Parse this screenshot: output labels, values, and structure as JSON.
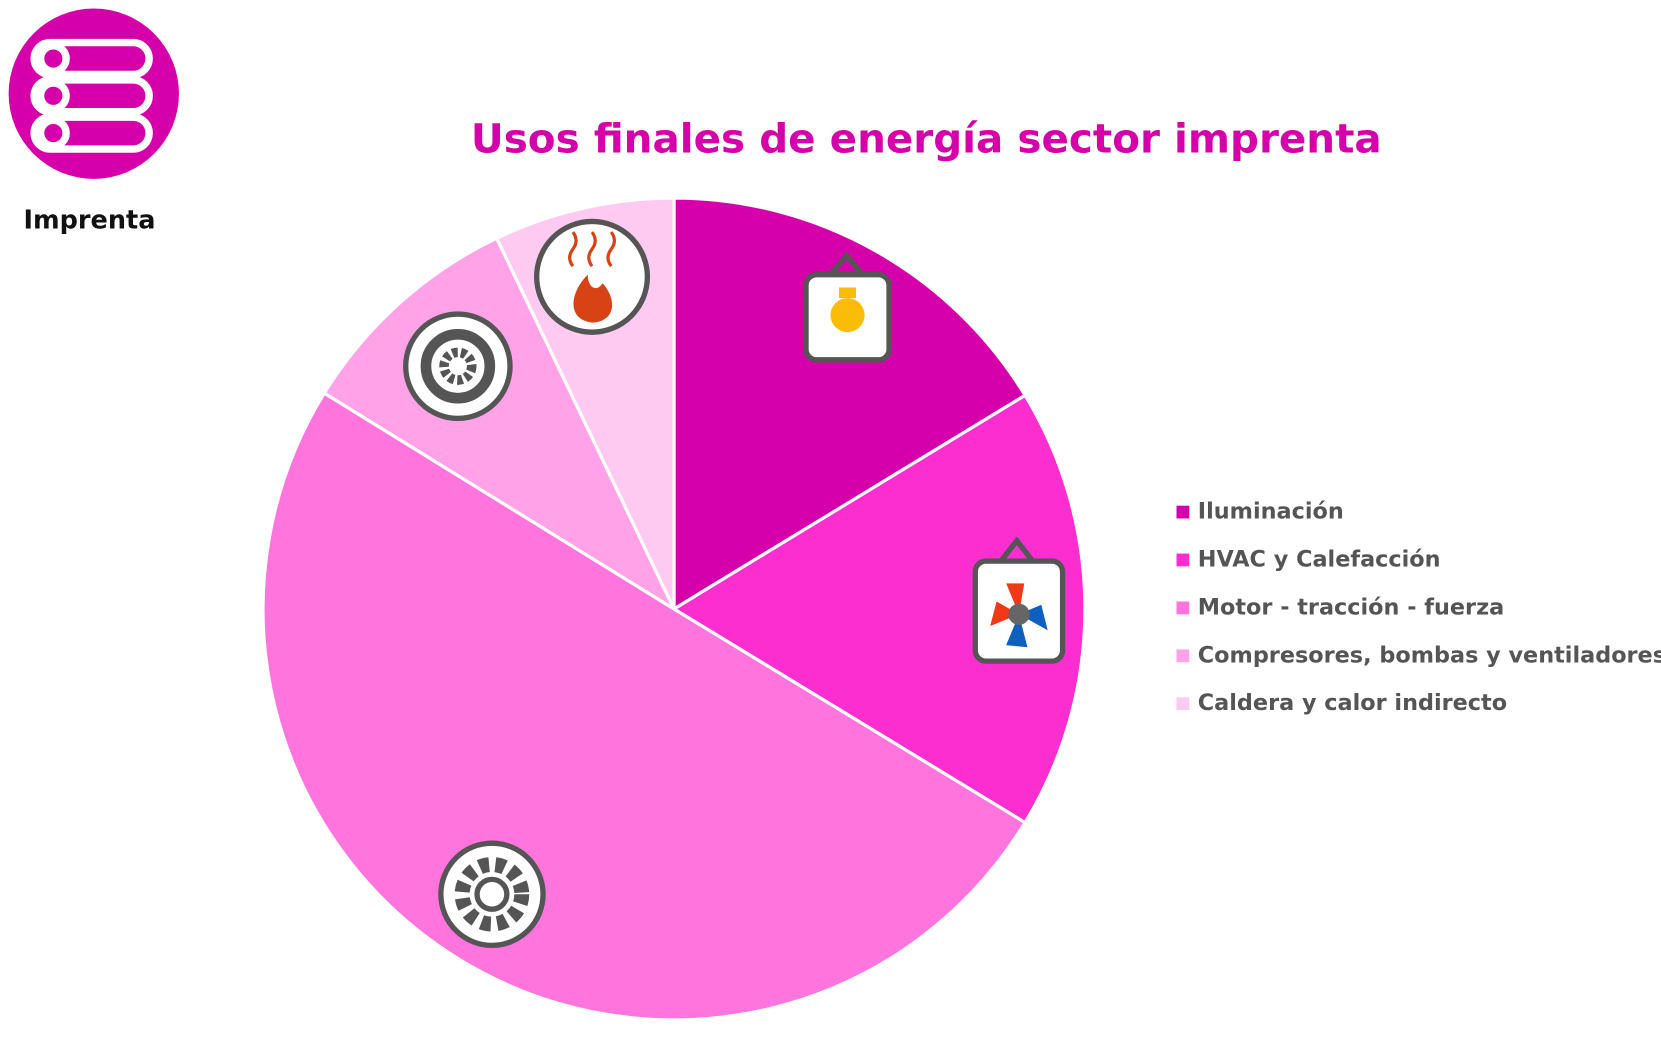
{
  "logo_text": "Imprenta",
  "chart_data": {
    "type": "pie",
    "title": "Usos finales de energía sector imprenta",
    "categories": [
      "Iluminación",
      "HVAC y Calefacción",
      "Motor - tracción - fuerza",
      "Compresores, bombas y ventiladores",
      "Caldera y calor indirecto"
    ],
    "values": [
      16.3,
      17.4,
      50.1,
      9.1,
      7.1
    ],
    "colors": [
      "#d600aa",
      "#fc2ecf",
      "#ff74dd",
      "#ffa2e8",
      "#ffcaf2"
    ],
    "legend": "right"
  }
}
